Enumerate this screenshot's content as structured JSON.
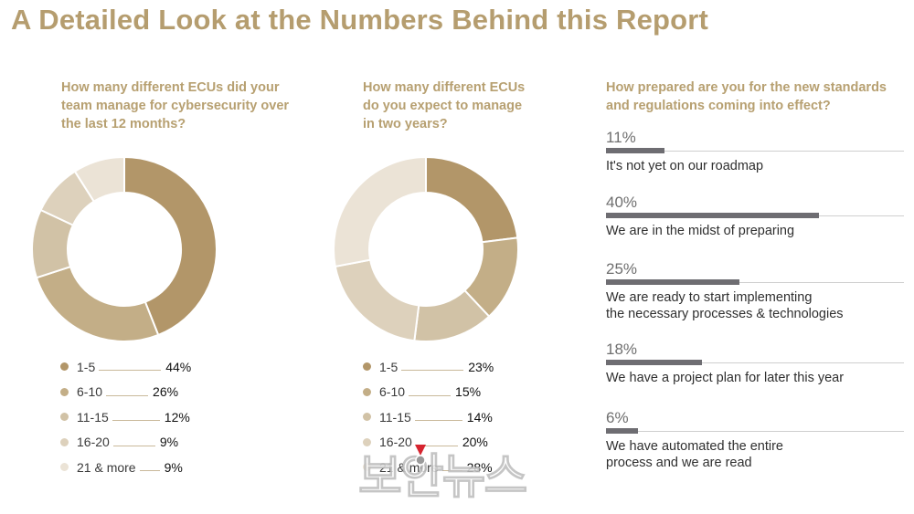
{
  "page": {
    "title": "A Detailed Look at the Numbers Behind this Report"
  },
  "questions": {
    "q1": "How many different ECUs did your team manage for cybersecurity over the last 12 months?",
    "q2": "How many different ECUs do you expect to manage in two years?",
    "q3": "How prepared are you for the new standards and regulations coming into effect?"
  },
  "chart_data": [
    {
      "type": "pie",
      "title": "How many different ECUs did your team manage for cybersecurity over the last 12 months?",
      "categories": [
        "1-5",
        "6-10",
        "11-15",
        "16-20",
        "21 & more"
      ],
      "values": [
        44,
        26,
        12,
        9,
        9
      ],
      "value_labels": [
        "44%",
        "26%",
        "12%",
        "9%",
        "9%"
      ],
      "colors": [
        "#b29669",
        "#c3ae87",
        "#d1c2a6",
        "#ddd1bc",
        "#ebe3d6"
      ],
      "donut": true,
      "legend_position": "bottom"
    },
    {
      "type": "pie",
      "title": "How many different ECUs do you expect to manage in two years?",
      "categories": [
        "1-5",
        "6-10",
        "11-15",
        "16-20",
        "21 & more"
      ],
      "values": [
        23,
        15,
        14,
        20,
        28
      ],
      "value_labels": [
        "23%",
        "15%",
        "14%",
        "20%",
        "28%"
      ],
      "colors": [
        "#b29669",
        "#c3ae87",
        "#d1c2a6",
        "#ddd1bc",
        "#ebe3d6"
      ],
      "donut": true,
      "legend_position": "bottom"
    },
    {
      "type": "bar",
      "orientation": "horizontal",
      "title": "How prepared are you for the new standards and regulations coming into effect?",
      "categories": [
        "It's not yet on our roadmap",
        "We are in the midst of preparing",
        "We are ready to start implementing\nthe necessary processes & technologies",
        "We have a project plan for later this year",
        "We have automated the entire\nprocess and we are read"
      ],
      "values": [
        11,
        40,
        25,
        18,
        6
      ],
      "value_labels": [
        "11%",
        "40%",
        "25%",
        "18%",
        "6%"
      ],
      "xlim": [
        0,
        56
      ],
      "color": "#6e6d72"
    }
  ],
  "watermark": {
    "text": "보안뉴스",
    "marker_color": "#d6242f"
  }
}
